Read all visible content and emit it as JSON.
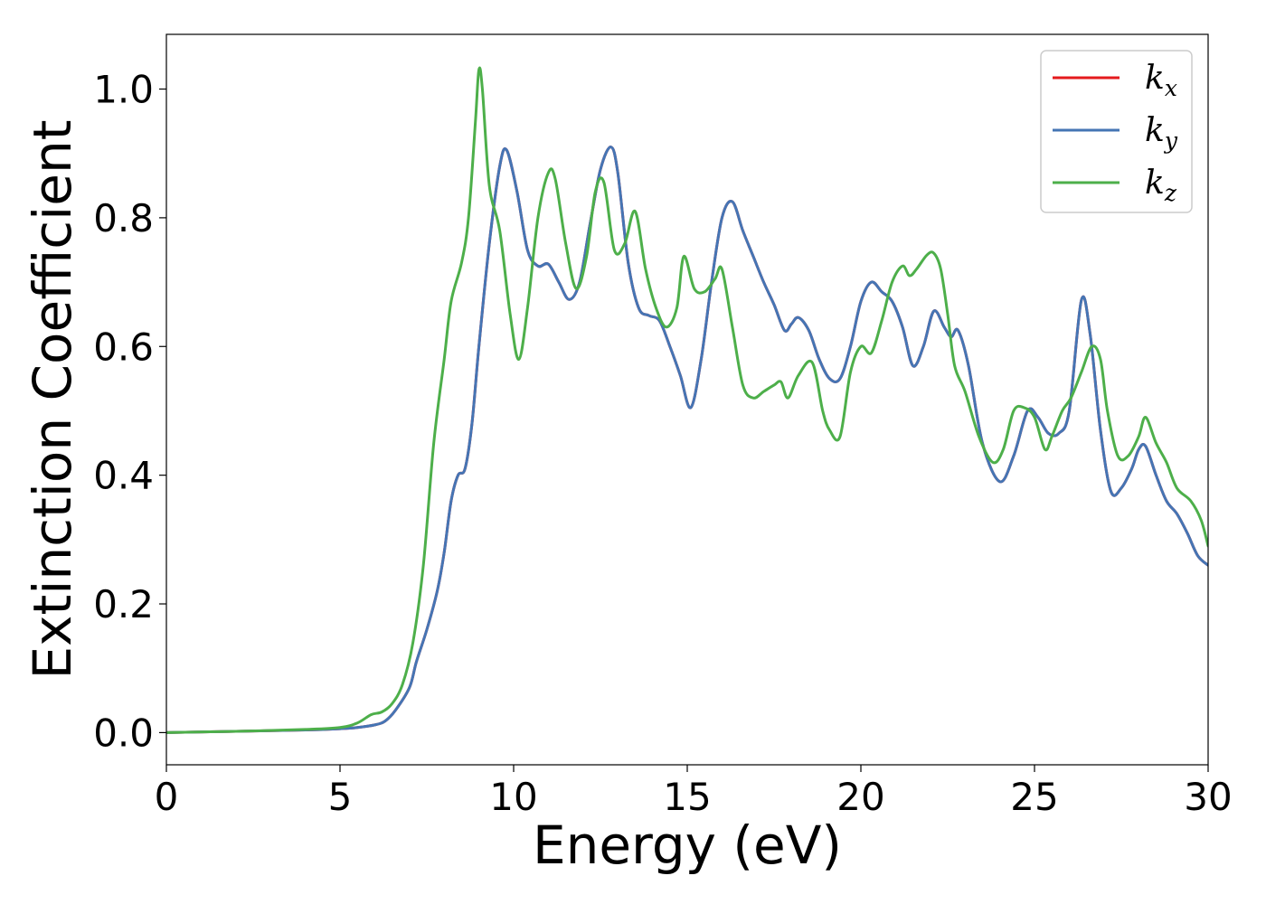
{
  "chart_data": {
    "type": "line",
    "xlabel": "Energy (eV)",
    "ylabel": "Extinction Coefficient",
    "xlim": [
      0,
      30
    ],
    "ylim": [
      -0.05,
      1.085
    ],
    "xticks": [
      "0",
      "5",
      "10",
      "15",
      "20",
      "25",
      "30"
    ],
    "yticks": [
      "0.0",
      "0.2",
      "0.4",
      "0.6",
      "0.8",
      "1.0"
    ],
    "grid": false,
    "legend_position": "top-right",
    "series": [
      {
        "name": "k_x",
        "label_main": "k",
        "label_sub": "x",
        "color": "#e41a1c",
        "x": [
          0,
          2,
          4,
          5,
          5.5,
          6,
          6.3,
          6.6,
          7,
          7.2,
          7.5,
          7.8,
          8.0,
          8.2,
          8.4,
          8.6,
          8.8,
          9.0,
          9.3,
          9.6,
          9.8,
          10.1,
          10.4,
          10.7,
          11.0,
          11.3,
          11.6,
          11.9,
          12.2,
          12.5,
          12.8,
          13.0,
          13.3,
          13.6,
          13.9,
          14.2,
          14.5,
          14.8,
          15.1,
          15.4,
          15.7,
          16.0,
          16.3,
          16.6,
          16.9,
          17.2,
          17.5,
          17.8,
          18.0,
          18.2,
          18.5,
          18.8,
          19.1,
          19.4,
          19.7,
          20.0,
          20.3,
          20.6,
          20.9,
          21.2,
          21.5,
          21.8,
          22.1,
          22.4,
          22.6,
          22.8,
          23.1,
          23.5,
          24.0,
          24.4,
          24.8,
          25.1,
          25.4,
          25.7,
          26.0,
          26.35,
          26.6,
          26.9,
          27.2,
          27.5,
          27.8,
          28.0,
          28.2,
          28.5,
          28.8,
          29.1,
          29.4,
          29.7,
          30.0
        ],
        "y": [
          0.0,
          0.002,
          0.004,
          0.006,
          0.008,
          0.012,
          0.018,
          0.035,
          0.07,
          0.11,
          0.16,
          0.22,
          0.28,
          0.36,
          0.4,
          0.41,
          0.48,
          0.6,
          0.76,
          0.88,
          0.905,
          0.84,
          0.75,
          0.725,
          0.728,
          0.7,
          0.673,
          0.7,
          0.79,
          0.875,
          0.91,
          0.87,
          0.73,
          0.66,
          0.648,
          0.64,
          0.6,
          0.555,
          0.505,
          0.58,
          0.7,
          0.8,
          0.825,
          0.78,
          0.74,
          0.7,
          0.665,
          0.625,
          0.635,
          0.645,
          0.625,
          0.58,
          0.55,
          0.55,
          0.6,
          0.67,
          0.7,
          0.685,
          0.67,
          0.63,
          0.57,
          0.6,
          0.655,
          0.63,
          0.615,
          0.625,
          0.57,
          0.45,
          0.39,
          0.43,
          0.5,
          0.49,
          0.465,
          0.465,
          0.5,
          0.672,
          0.62,
          0.47,
          0.375,
          0.38,
          0.41,
          0.44,
          0.445,
          0.4,
          0.36,
          0.34,
          0.31,
          0.275,
          0.26
        ]
      },
      {
        "name": "k_y",
        "label_main": "k",
        "label_sub": "y",
        "color": "#4575b4",
        "x": [
          0,
          2,
          4,
          5,
          5.5,
          6,
          6.3,
          6.6,
          7,
          7.2,
          7.5,
          7.8,
          8.0,
          8.2,
          8.4,
          8.6,
          8.8,
          9.0,
          9.3,
          9.6,
          9.8,
          10.1,
          10.4,
          10.7,
          11.0,
          11.3,
          11.6,
          11.9,
          12.2,
          12.5,
          12.8,
          13.0,
          13.3,
          13.6,
          13.9,
          14.2,
          14.5,
          14.8,
          15.1,
          15.4,
          15.7,
          16.0,
          16.3,
          16.6,
          16.9,
          17.2,
          17.5,
          17.8,
          18.0,
          18.2,
          18.5,
          18.8,
          19.1,
          19.4,
          19.7,
          20.0,
          20.3,
          20.6,
          20.9,
          21.2,
          21.5,
          21.8,
          22.1,
          22.4,
          22.6,
          22.8,
          23.1,
          23.5,
          24.0,
          24.4,
          24.8,
          25.1,
          25.4,
          25.7,
          26.0,
          26.35,
          26.6,
          26.9,
          27.2,
          27.5,
          27.8,
          28.0,
          28.2,
          28.5,
          28.8,
          29.1,
          29.4,
          29.7,
          30.0
        ],
        "y": [
          0.0,
          0.002,
          0.004,
          0.006,
          0.008,
          0.012,
          0.018,
          0.035,
          0.07,
          0.11,
          0.16,
          0.22,
          0.28,
          0.36,
          0.4,
          0.41,
          0.48,
          0.6,
          0.76,
          0.88,
          0.905,
          0.84,
          0.75,
          0.725,
          0.728,
          0.7,
          0.673,
          0.7,
          0.79,
          0.875,
          0.91,
          0.87,
          0.73,
          0.66,
          0.648,
          0.64,
          0.6,
          0.555,
          0.505,
          0.58,
          0.7,
          0.8,
          0.825,
          0.78,
          0.74,
          0.7,
          0.665,
          0.625,
          0.635,
          0.645,
          0.625,
          0.58,
          0.55,
          0.55,
          0.6,
          0.67,
          0.7,
          0.685,
          0.67,
          0.63,
          0.57,
          0.6,
          0.655,
          0.63,
          0.615,
          0.625,
          0.57,
          0.45,
          0.39,
          0.43,
          0.5,
          0.49,
          0.465,
          0.465,
          0.5,
          0.672,
          0.62,
          0.47,
          0.375,
          0.38,
          0.41,
          0.44,
          0.445,
          0.4,
          0.36,
          0.34,
          0.31,
          0.275,
          0.26
        ]
      },
      {
        "name": "k_z",
        "label_main": "k",
        "label_sub": "z",
        "color": "#4daf4a",
        "x": [
          0,
          2,
          4,
          5,
          5.5,
          5.9,
          6.2,
          6.5,
          6.8,
          7.1,
          7.4,
          7.7,
          8.0,
          8.2,
          8.5,
          8.7,
          8.9,
          9.0,
          9.1,
          9.3,
          9.6,
          9.9,
          10.15,
          10.4,
          10.7,
          11.0,
          11.2,
          11.5,
          11.8,
          12.1,
          12.35,
          12.6,
          12.9,
          13.2,
          13.5,
          13.8,
          14.1,
          14.4,
          14.7,
          14.9,
          15.2,
          15.5,
          15.8,
          16.0,
          16.3,
          16.6,
          16.9,
          17.2,
          17.5,
          17.7,
          17.9,
          18.2,
          18.6,
          18.9,
          19.1,
          19.4,
          19.7,
          20.0,
          20.3,
          20.6,
          20.9,
          21.2,
          21.4,
          21.6,
          21.9,
          22.1,
          22.3,
          22.5,
          22.7,
          23.0,
          23.4,
          23.8,
          24.1,
          24.4,
          24.7,
          25.0,
          25.3,
          25.5,
          25.8,
          26.05,
          26.35,
          26.65,
          26.9,
          27.1,
          27.4,
          27.7,
          28.0,
          28.2,
          28.5,
          28.8,
          29.1,
          29.5,
          29.8,
          30.0
        ],
        "y": [
          0.0,
          0.002,
          0.005,
          0.008,
          0.015,
          0.028,
          0.032,
          0.045,
          0.075,
          0.14,
          0.26,
          0.45,
          0.58,
          0.67,
          0.73,
          0.8,
          0.95,
          1.03,
          1.0,
          0.85,
          0.78,
          0.65,
          0.58,
          0.66,
          0.8,
          0.87,
          0.86,
          0.76,
          0.69,
          0.74,
          0.84,
          0.855,
          0.75,
          0.76,
          0.81,
          0.72,
          0.66,
          0.63,
          0.66,
          0.74,
          0.69,
          0.685,
          0.705,
          0.72,
          0.63,
          0.54,
          0.52,
          0.53,
          0.54,
          0.545,
          0.52,
          0.555,
          0.575,
          0.5,
          0.47,
          0.46,
          0.56,
          0.6,
          0.59,
          0.64,
          0.7,
          0.725,
          0.71,
          0.72,
          0.742,
          0.745,
          0.72,
          0.65,
          0.57,
          0.53,
          0.46,
          0.42,
          0.44,
          0.5,
          0.505,
          0.49,
          0.44,
          0.46,
          0.5,
          0.52,
          0.56,
          0.6,
          0.58,
          0.5,
          0.43,
          0.43,
          0.46,
          0.49,
          0.45,
          0.42,
          0.38,
          0.36,
          0.33,
          0.29
        ]
      }
    ]
  }
}
